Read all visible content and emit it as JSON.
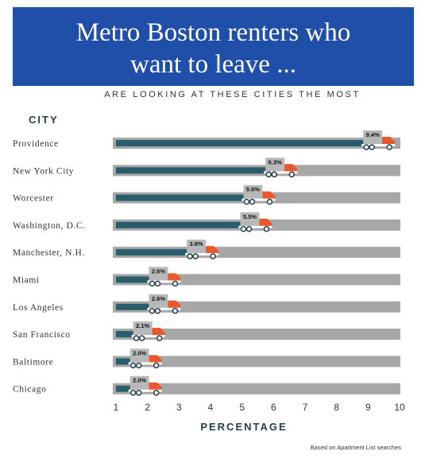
{
  "title_line1": "Metro Boston renters who",
  "title_line2": "want to leave ...",
  "subtitle": "ARE LOOKING AT THESE CITIES THE MOST",
  "city_header": "CITY",
  "source": "Based on Apartment List searches",
  "colors": {
    "title_bg": "#1f4fa8",
    "bar_fill": "#2a5d6b",
    "track": "#a7a7a7",
    "truck_cab": "#e8582c",
    "truck_box": "#b8b8b8"
  },
  "chart_data": {
    "type": "bar",
    "orientation": "horizontal",
    "title": "Metro Boston renters who want to leave ...",
    "subtitle": "ARE LOOKING AT THESE CITIES THE MOST",
    "xlabel": "PERCENTAGE",
    "ylabel": "CITY",
    "xlim": [
      1,
      10
    ],
    "xticks": [
      "1",
      "2",
      "3",
      "4",
      "5",
      "6",
      "7",
      "8",
      "9",
      "10"
    ],
    "categories": [
      "Providence",
      "New York City",
      "Worcester",
      "Washington, D.C.",
      "Manchester, N.H.",
      "Miami",
      "Los Angeles",
      "San Francisco",
      "Baltimore",
      "Chicago"
    ],
    "values": [
      9.4,
      6.3,
      5.6,
      5.5,
      3.8,
      2.6,
      2.6,
      2.1,
      2.0,
      2.0
    ],
    "value_labels": [
      "9.4%",
      "6.3%",
      "5.6%",
      "5.5%",
      "3.8%",
      "2.6%",
      "2.6%",
      "2.1%",
      "2.0%",
      "2.0%"
    ]
  }
}
